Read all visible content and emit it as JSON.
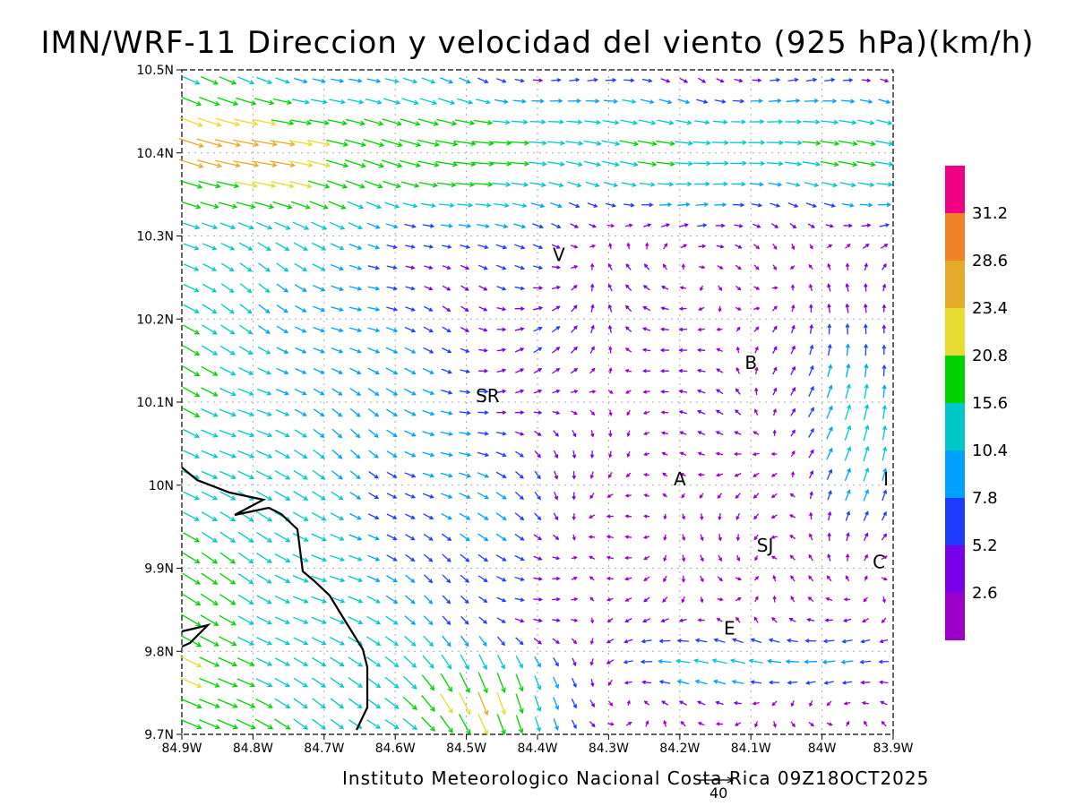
{
  "title": "IMN/WRF-11 Direccion y velocidad del viento (925 hPa)(km/h)",
  "footer": "Instituto Meteorologico Nacional Costa Rica 09Z18OCT2025",
  "reference_vector_label": "40",
  "map": {
    "x_ticks": [
      "84.9W",
      "84.8W",
      "84.7W",
      "84.6W",
      "84.5W",
      "84.4W",
      "84.3W",
      "84.2W",
      "84.1W",
      "84W",
      "83.9W"
    ],
    "y_ticks": [
      "10.5N",
      "10.4N",
      "10.3N",
      "10.2N",
      "10.1N",
      "10N",
      "9.9N",
      "9.8N",
      "9.7N"
    ],
    "lon_range": [
      -84.9,
      -83.9
    ],
    "lat_range": [
      9.7,
      10.5
    ],
    "grid": true,
    "places": [
      {
        "label": "V",
        "lon": -84.37,
        "lat": 10.27
      },
      {
        "label": "SR",
        "lon": -84.47,
        "lat": 10.1
      },
      {
        "label": "B",
        "lon": -84.1,
        "lat": 10.14
      },
      {
        "label": "A",
        "lon": -84.2,
        "lat": 10.0
      },
      {
        "label": "SJ",
        "lon": -84.08,
        "lat": 9.92
      },
      {
        "label": "C",
        "lon": -83.92,
        "lat": 9.9
      },
      {
        "label": "E",
        "lon": -84.13,
        "lat": 9.82
      },
      {
        "label": "I",
        "lon": -83.91,
        "lat": 10.0
      }
    ]
  },
  "colorbar": {
    "labels": [
      "31.2",
      "28.6",
      "23.4",
      "20.8",
      "15.6",
      "10.4",
      "7.8",
      "5.2",
      "2.6"
    ],
    "colors": [
      "#9c00c8",
      "#7a00e8",
      "#1e3cff",
      "#00a0ff",
      "#00c8c8",
      "#00d200",
      "#e6dc32",
      "#e6aa2a",
      "#f08228",
      "#f00082"
    ]
  }
}
